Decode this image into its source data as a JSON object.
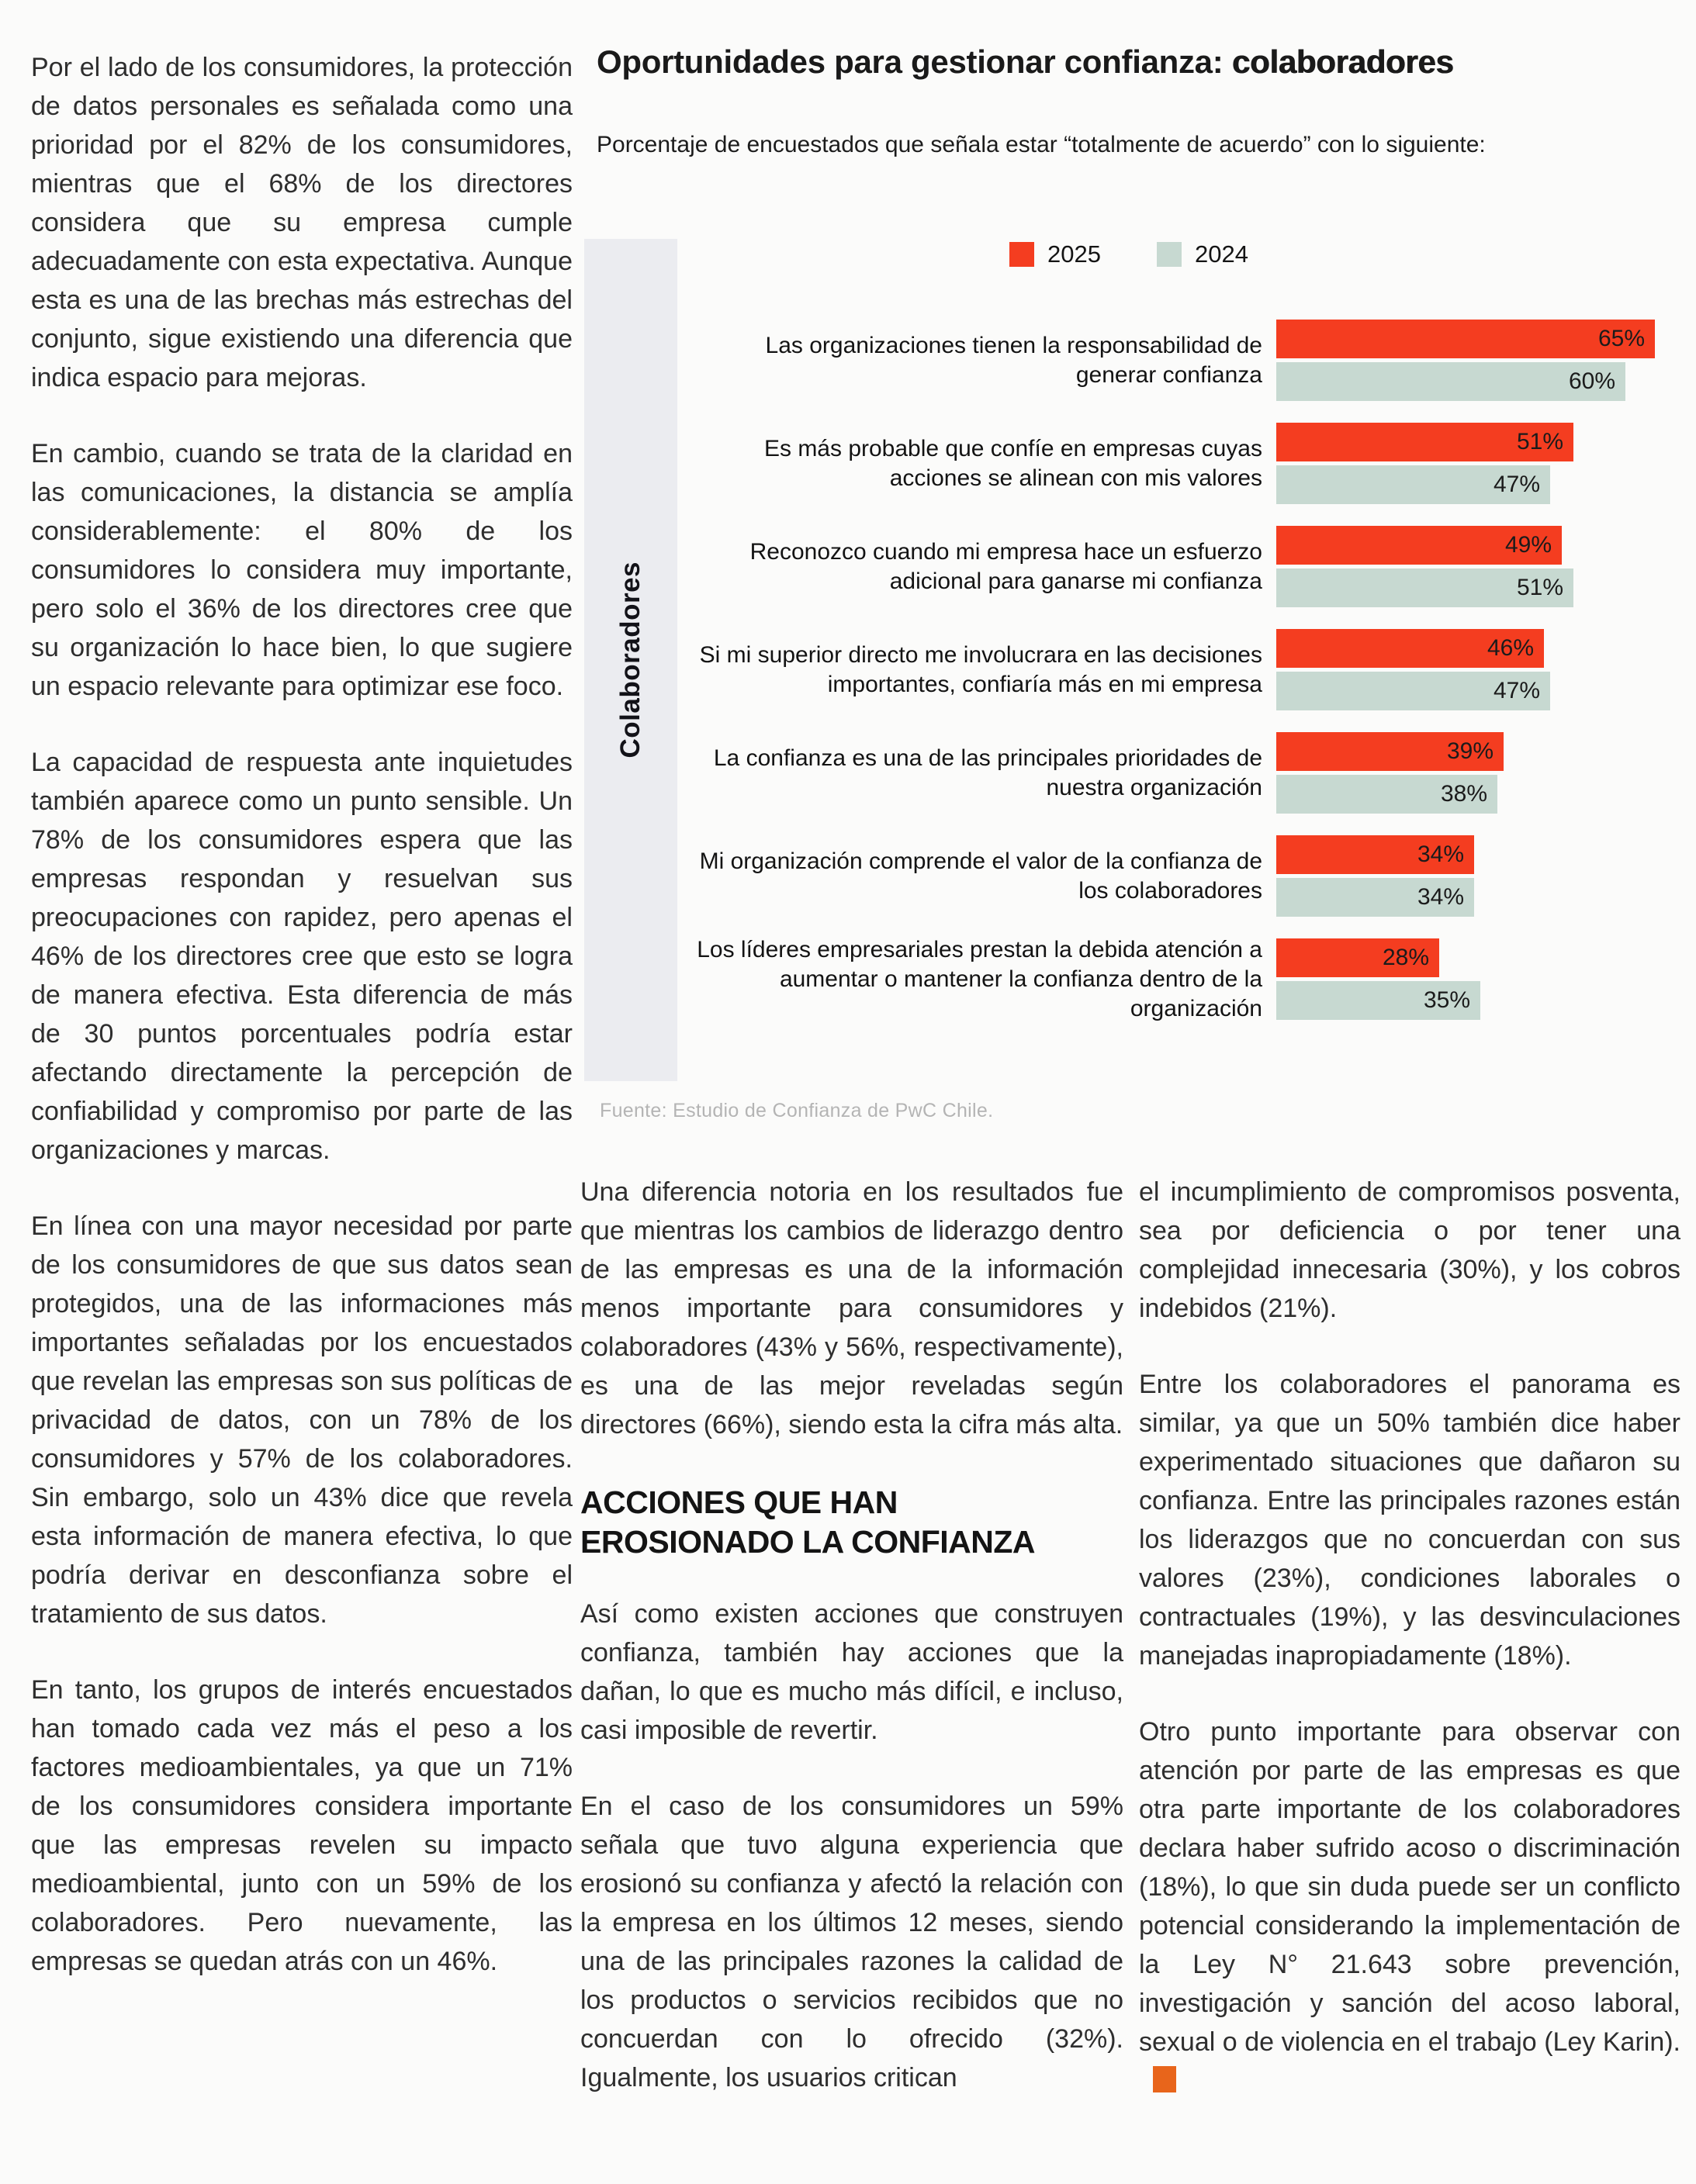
{
  "article": {
    "left_column": {
      "paragraphs": [
        "Por el lado de los consumidores, la protección de datos personales es señalada como una prioridad por el 82% de los consumidores, mientras que el 68% de los directores considera que su empresa cumple adecuadamente con esta expectativa. Aunque esta es una de las brechas más estrechas del conjunto, sigue existiendo una diferencia que indica espacio para mejoras.",
        "En cambio, cuando se trata de la claridad en las comunicaciones, la distancia se amplía considerablemente: el 80% de los consumidores lo considera muy importante, pero solo el 36% de los directores cree que su organización lo hace bien, lo que sugiere un espacio relevante para optimizar ese foco.",
        "La capacidad de respuesta ante inquietudes también aparece como un punto sensible. Un 78% de los consumidores espera que las empresas respondan y resuelvan sus preocupaciones con rapidez, pero apenas el 46% de los directores cree que esto se logra de manera efectiva. Esta diferencia de más de 30 puntos porcentuales podría estar afectando directamente la percepción de confiabilidad y compromiso por parte de las organizaciones y marcas.",
        "En línea con una mayor necesidad por parte de los consumidores de que sus datos sean protegidos, una de las informaciones más importantes señaladas por los encuestados que revelan las empresas son sus políticas de privacidad de datos, con un 78% de los consumidores y 57% de los colaboradores. Sin embargo, solo un 43% dice que revela esta información de manera efectiva, lo que podría derivar en desconfianza sobre el tratamiento de sus datos.",
        "En tanto, los grupos de interés encuestados han tomado cada vez más el peso a los factores medioambientales, ya que un 71% de los consumidores considera importante que las empresas revelen su impacto medioambiental, junto con un 59% de los colaboradores. Pero nuevamente, las empresas se quedan atrás con un 46%."
      ]
    },
    "middle_column": {
      "paragraph_1": "Una diferencia notoria en los resultados fue que mientras los cambios de liderazgo dentro de las empresas es una de la información menos importante para consumidores y colaboradores (43% y 56%, respectivamente), es una de las mejor reveladas según directores (66%), siendo esta la cifra más alta.",
      "heading_lines": [
        "ACCIONES QUE HAN",
        "EROSIONADO LA CONFIANZA"
      ],
      "paragraph_2": "Así como existen acciones que construyen confianza, también hay acciones que la dañan, lo que es mucho más difícil, e incluso, casi imposible de revertir.",
      "paragraph_3": "En el caso de los consumidores un 59% señala que tuvo alguna experiencia que erosionó su confianza y afectó la relación con la empresa en los últimos 12 meses, siendo una de las principales razones la calidad de los productos o servicios recibidos que no concuerdan con lo ofrecido (32%). Igualmente, los usuarios critican"
    },
    "right_column": {
      "paragraph_1": "el incumplimiento de compromisos posventa, sea por deficiencia o por tener una complejidad innecesaria (30%), y los cobros indebidos (21%).",
      "paragraph_2": "Entre los colaboradores el panorama es similar, ya que un 50% también dice haber experimentado situaciones que dañaron su confianza. Entre las principales razones están los liderazgos que no concuerdan con sus valores (23%), condiciones laborales o contractuales (19%), y las desvinculaciones manejadas inapropiadamente (18%).",
      "paragraph_3": "Otro punto importante para observar con atención por parte de las empresas es que otra parte importante de los colaboradores declara haber sufrido acoso o discriminación (18%), lo que sin duda puede ser un conflicto potencial considerando la implementación de la Ley N° 21.643 sobre prevención, investigación y sanción del acoso laboral, sexual o de violencia en el trabajo (Ley Karin)."
    },
    "end_mark_color": "#e8651b"
  },
  "chart_data": {
    "type": "bar",
    "orientation": "horizontal",
    "title_regular": "Oportunidades para gestionar confianza: ",
    "title_bold": "colaboradores",
    "subtitle": "Porcentaje de encuestados que señala estar “totalmente de acuerdo” con lo siguiente:",
    "axis_group_label": "Colaboradores",
    "legend": [
      {
        "label": "2025",
        "color": "#f43d20"
      },
      {
        "label": "2024",
        "color": "#c7d9d1"
      }
    ],
    "categories": [
      "Las organizaciones tienen la responsabilidad de generar confianza",
      "Es más probable que confíe en empresas cuyas acciones se alinean con mis valores",
      "Reconozco cuando mi empresa hace un esfuerzo adicional para ganarse mi confianza",
      "Si mi superior directo me involucrara en las decisiones importantes, confiaría más en mi empresa",
      "La confianza es una de las principales prioridades de nuestra organización",
      "Mi organización comprende el valor de la confianza de los colaboradores",
      "Los líderes empresariales prestan la debida atención a aumentar o mantener la confianza dentro de la organización"
    ],
    "series": [
      {
        "name": "2025",
        "values": [
          65,
          51,
          49,
          46,
          39,
          34,
          28
        ]
      },
      {
        "name": "2024",
        "values": [
          60,
          47,
          51,
          47,
          38,
          34,
          35
        ]
      }
    ],
    "value_suffix": "%",
    "xlim": [
      0,
      68
    ],
    "grid": false,
    "legend_position": "top-center",
    "source": "Fuente: Estudio de Confianza de PwC Chile."
  }
}
